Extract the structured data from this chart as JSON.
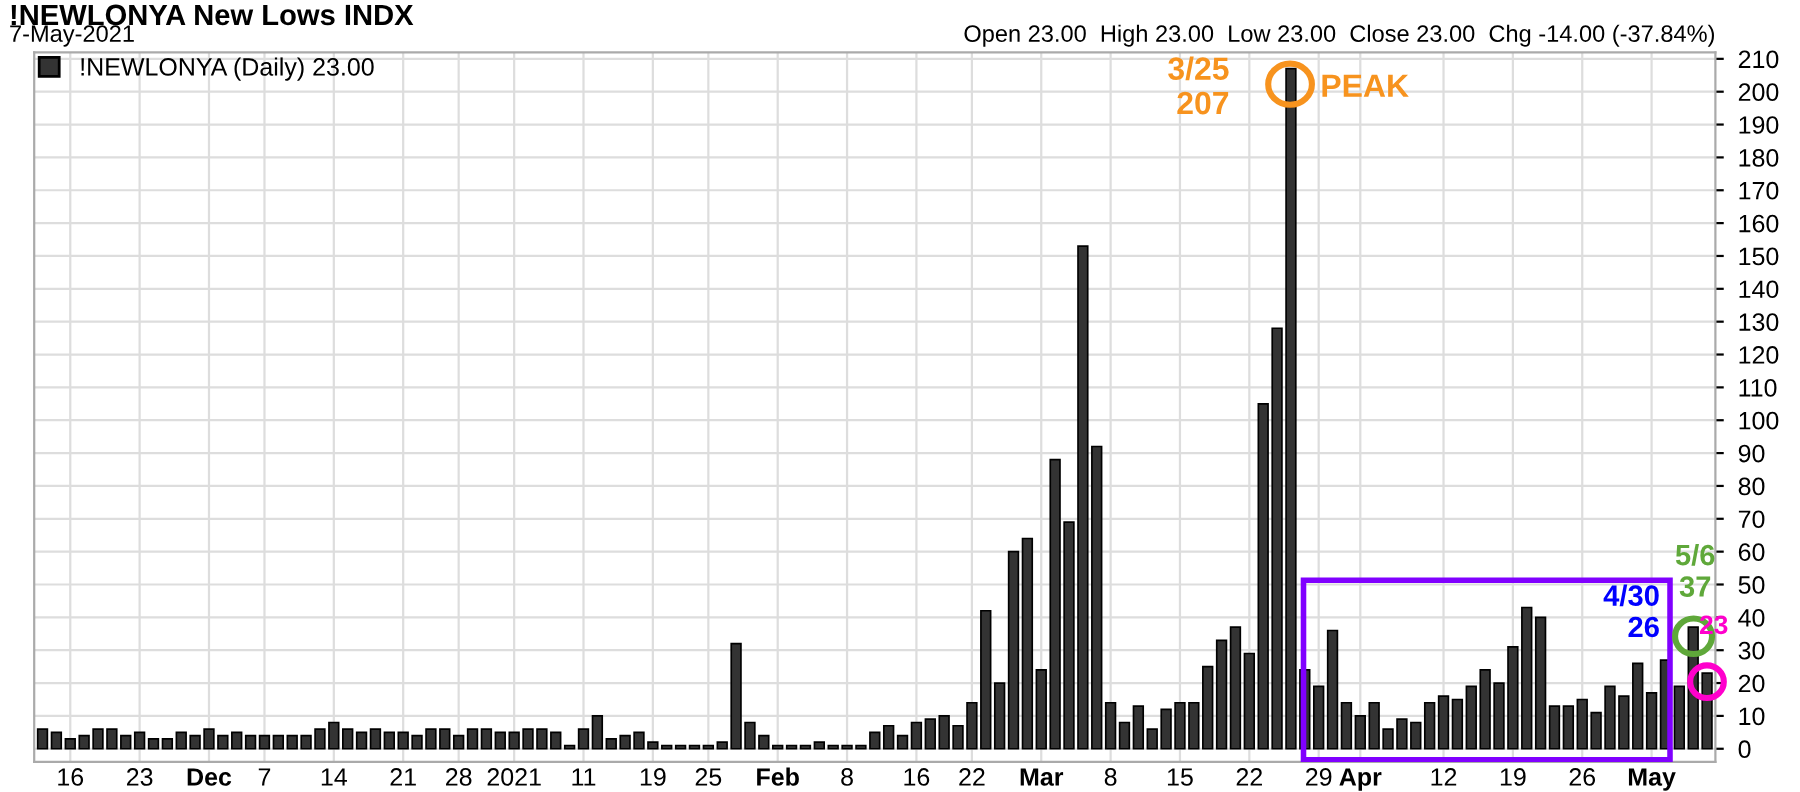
{
  "chart_data": {
    "type": "bar",
    "title": "!NEWLONYA New Lows INDX",
    "subtitle": "7-May-2021",
    "annotations": [
      "Open 23.00  High 23.00  Low 23.00  Close 23.00  Chg -14.00 (-37.84%)",
      "3/25\n207",
      "PEAK",
      "4/30\n26",
      "5/6\n37",
      "23"
    ],
    "categories": [
      null,
      null,
      "16",
      null,
      null,
      null,
      null,
      "23",
      null,
      null,
      null,
      null,
      "Dec",
      null,
      null,
      null,
      "7",
      null,
      null,
      null,
      null,
      "14",
      null,
      null,
      null,
      null,
      "21",
      null,
      null,
      null,
      "28",
      null,
      null,
      null,
      "2021",
      null,
      null,
      null,
      null,
      "11",
      null,
      null,
      null,
      null,
      "19",
      null,
      null,
      null,
      "25",
      null,
      null,
      null,
      null,
      "Feb",
      null,
      null,
      null,
      null,
      "8",
      null,
      null,
      null,
      null,
      "16",
      null,
      null,
      null,
      "22",
      null,
      null,
      null,
      null,
      "Mar",
      null,
      null,
      null,
      null,
      "8",
      null,
      null,
      null,
      null,
      "15",
      null,
      null,
      null,
      null,
      "22",
      null,
      null,
      null,
      null,
      "29",
      null,
      null,
      "Apr",
      null,
      null,
      null,
      null,
      null,
      "12",
      null,
      null,
      null,
      null,
      "19",
      null,
      null,
      null,
      null,
      "26",
      null,
      null,
      null,
      null,
      "May",
      null,
      null,
      null,
      null
    ],
    "series": [
      {
        "name": "!NEWLONYA (Daily) 23.00",
        "color": "#333333",
        "values": [
          6,
          5,
          3,
          4,
          6,
          6,
          4,
          5,
          3,
          3,
          5,
          4,
          6,
          4,
          5,
          4,
          4,
          4,
          4,
          4,
          6,
          8,
          6,
          5,
          6,
          5,
          5,
          4,
          6,
          6,
          4,
          6,
          6,
          5,
          5,
          6,
          6,
          5,
          1,
          6,
          10,
          3,
          4,
          5,
          2,
          1,
          1,
          1,
          1,
          2,
          32,
          8,
          4,
          1,
          1,
          1,
          2,
          1,
          1,
          1,
          5,
          7,
          4,
          8,
          9,
          10,
          7,
          14,
          42,
          20,
          60,
          64,
          24,
          88,
          69,
          153,
          92,
          14,
          8,
          13,
          6,
          12,
          14,
          14,
          25,
          33,
          37,
          29,
          105,
          128,
          207,
          24,
          19,
          36,
          14,
          10,
          14,
          6,
          9,
          8,
          14,
          16,
          15,
          19,
          24,
          20,
          31,
          43,
          40,
          13,
          13,
          15,
          11,
          19,
          16,
          26,
          17,
          27,
          19,
          37,
          23
        ]
      }
    ],
    "ylim": [
      -4,
      212
    ],
    "yticks": [
      0,
      10,
      20,
      30,
      40,
      50,
      60,
      70,
      80,
      90,
      100,
      110,
      120,
      130,
      140,
      150,
      160,
      170,
      180,
      190,
      200,
      210
    ],
    "grid": true,
    "legend": "top left"
  }
}
